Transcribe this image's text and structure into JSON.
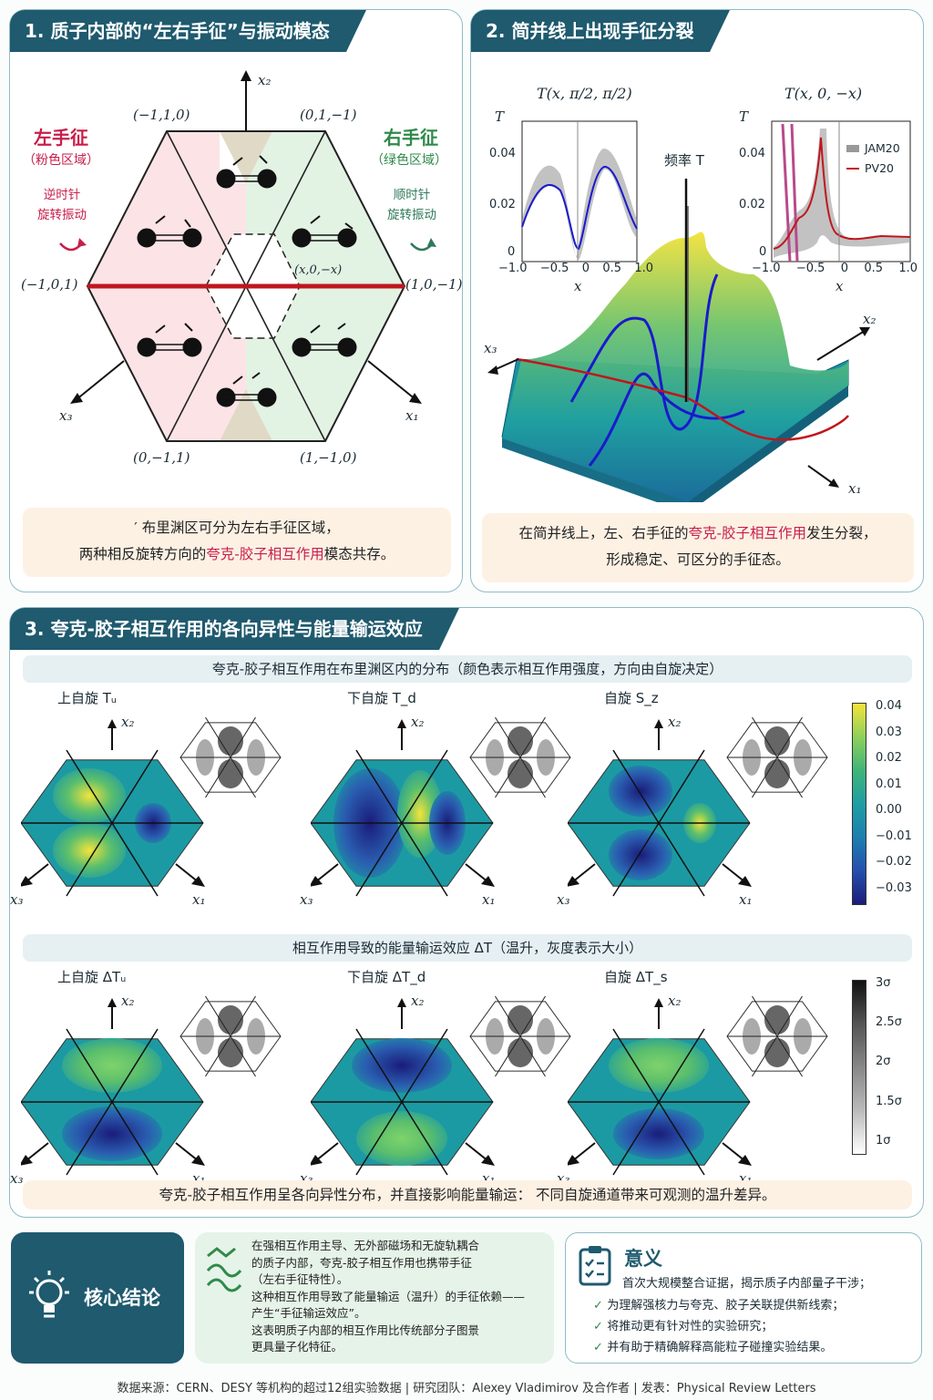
{
  "panel1": {
    "title": "1. 质子内部的“左右手征”与振动模态",
    "axis_x2": "x₂",
    "axis_x3": "x₃",
    "axis_x1": "x₁",
    "v_top_left": "(−1,1,0)",
    "v_top_right": "(0,1,−1)",
    "v_left": "(−1,0,1)",
    "v_right": "(1,0,−1)",
    "v_bot_left": "(0,−1,1)",
    "v_bot_right": "(1,−1,0)",
    "center_point": "(x,0,−x)",
    "left_title": "左手征",
    "left_sub": "（粉色区域）",
    "left_rot": "逆时针\n旋转振动",
    "right_title": "右手征",
    "right_sub": "（绿色区域）",
    "right_rot": "顺时针\n旋转振动",
    "caption_line1": "′ 布里渊区可分为左右手征区域，",
    "caption_line2a": "两种相反旋转方向的",
    "caption_line2b": "夸克-胶子相互作用",
    "caption_line2c": "模态共存。"
  },
  "panel2": {
    "title": "2. 简并线上出现手征分裂",
    "inset1_title": "T(x, π/2, π/2)",
    "inset2_title": "T(x, 0, −x)",
    "T_label": "T",
    "x_label": "x",
    "yticks": [
      "0.04",
      "0.02",
      "0"
    ],
    "xticks": [
      "−1.0",
      "−0.5",
      "0",
      "0.5",
      "1.0"
    ],
    "legend_jam": "JAM20",
    "legend_pv": "PV20",
    "freq_label": "频率 T",
    "axis_x1": "x₁",
    "axis_x2": "x₂",
    "axis_x3": "x₃",
    "caption_line1a": "在简并线上，左、右手征的",
    "caption_line1b": "夸克-胶子相互作用",
    "caption_line1c": "发生分裂，",
    "caption_line2": "形成稳定、可区分的手征态。"
  },
  "panel3": {
    "title": "3. 夸克-胶子相互作用的各向异性与能量输运效应",
    "strip1": "夸克-胶子相互作用在布里渊区内的分布（颜色表示相互作用强度，方向由自旋决定）",
    "row1": [
      {
        "label": "上自旋 Tᵤ"
      },
      {
        "label": "下自旋 T_d"
      },
      {
        "label": "自旋 S_z"
      }
    ],
    "colorbar1": [
      "0.04",
      "0.03",
      "0.02",
      "0.01",
      "0.00",
      "−0.01",
      "−0.02",
      "−0.03"
    ],
    "strip2": "相互作用导致的能量输运效应 ΔT（温升，灰度表示大小）",
    "row2": [
      {
        "label": "上自旋 ΔTᵤ"
      },
      {
        "label": "下自旋 ΔT_d"
      },
      {
        "label": "自旋 ΔT_s"
      }
    ],
    "colorbar2": [
      "3σ",
      "2.5σ",
      "2σ",
      "1.5σ",
      "1σ"
    ],
    "axis_x1": "x₁",
    "axis_x2": "x₂",
    "axis_x3": "x₃",
    "caption": "夸克-胶子相互作用呈各向异性分布，并直接影响能量输运：  不同自旋通道带来可观测的温升差异。"
  },
  "conclusion": {
    "title": "核心结论",
    "lines": [
      "在强相互作用主导、无外部磁场和无旋轨耦合",
      "的质子内部，夸克-胶子相互作用也携带手征",
      "（左右手征特性）。",
      "这种相互作用导致了能量输运（温升）的手征依赖——",
      "产生“手征输运效应”。",
      "这表明质子内部的相互作用比传统部分子图景",
      "更具量子化特征。"
    ]
  },
  "significance": {
    "title": "意义",
    "intro": "首次大规模整合证据，揭示质子内部量子干涉；",
    "items": [
      "为理解强核力与夸克、胶子关联提供新线索；",
      "将推动更有针对性的实验研究；",
      "并有助于精确解释高能粒子碰撞实验结果。"
    ]
  },
  "footer": "数据来源：CERN、DESY 等机构的超过12组实验数据    |    研究团队：Alexey Vladimirov 及合作者    |    发表：Physical Review Letters",
  "colors": {
    "accent": "#1f5a6e",
    "red": "#c81e4a",
    "green": "#2f8a4a",
    "pink": "#fbe3e6",
    "mint": "#e2f2e3"
  }
}
